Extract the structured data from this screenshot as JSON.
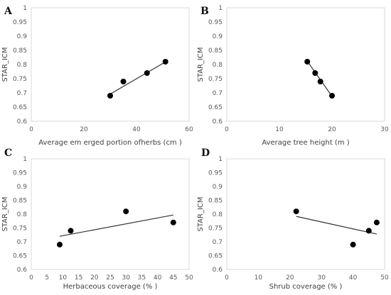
{
  "chart_data": [
    {
      "panel": "A",
      "type": "scatter",
      "xlabel": "Average em erged portion ofherbs (cm )",
      "ylabel": "STAR_ICM",
      "xlim": [
        0,
        60
      ],
      "ylim": [
        0.6,
        1
      ],
      "xticks": [
        "0",
        "20",
        "40",
        "60"
      ],
      "yticks": [
        "0.6",
        "0.65",
        "0.7",
        "0.75",
        "0.8",
        "0.85",
        "0.9",
        "0.95",
        "1"
      ],
      "points": [
        {
          "x": 30,
          "y": 0.69
        },
        {
          "x": 35,
          "y": 0.74
        },
        {
          "x": 44,
          "y": 0.77
        },
        {
          "x": 51,
          "y": 0.81
        }
      ],
      "trendline": [
        {
          "x": 30,
          "y": 0.696
        },
        {
          "x": 51,
          "y": 0.809
        }
      ]
    },
    {
      "panel": "B",
      "type": "scatter",
      "xlabel": "Average tree height (m )",
      "ylabel": "STAR_ICM",
      "xlim": [
        0,
        30
      ],
      "ylim": [
        0.6,
        1
      ],
      "xticks": [
        "0",
        "10",
        "20",
        "30"
      ],
      "yticks": [
        "0.6",
        "0.65",
        "0.7",
        "0.75",
        "0.8",
        "0.85",
        "0.9",
        "0.95",
        "1"
      ],
      "points": [
        {
          "x": 15.3,
          "y": 0.81
        },
        {
          "x": 16.8,
          "y": 0.77
        },
        {
          "x": 17.8,
          "y": 0.74
        },
        {
          "x": 20,
          "y": 0.69
        }
      ],
      "trendline": [
        {
          "x": 15.3,
          "y": 0.812
        },
        {
          "x": 20,
          "y": 0.688
        }
      ]
    },
    {
      "panel": "C",
      "type": "scatter",
      "xlabel": "Herbaceous coverage (% )",
      "ylabel": "STAR_ICM",
      "xlim": [
        0,
        50
      ],
      "ylim": [
        0.6,
        1
      ],
      "xticks": [
        "0",
        "5",
        "10",
        "15",
        "20",
        "25",
        "30",
        "35",
        "40",
        "45",
        "50"
      ],
      "yticks": [
        "0.6",
        "0.65",
        "0.7",
        "0.75",
        "0.8",
        "0.85",
        "0.9",
        "0.95",
        "1"
      ],
      "points": [
        {
          "x": 9,
          "y": 0.69
        },
        {
          "x": 12.5,
          "y": 0.74
        },
        {
          "x": 30,
          "y": 0.81
        },
        {
          "x": 45,
          "y": 0.77
        }
      ],
      "trendline": [
        {
          "x": 9,
          "y": 0.72
        },
        {
          "x": 45,
          "y": 0.797
        }
      ]
    },
    {
      "panel": "D",
      "type": "scatter",
      "xlabel": "Shrub coverage (% )",
      "ylabel": "STAR_ICM",
      "xlim": [
        0,
        50
      ],
      "ylim": [
        0.6,
        1
      ],
      "xticks": [
        "0",
        "10",
        "20",
        "30",
        "40",
        "50"
      ],
      "yticks": [
        "0.6",
        "0.65",
        "0.7",
        "0.75",
        "0.8",
        "0.85",
        "0.9",
        "0.95",
        "1"
      ],
      "points": [
        {
          "x": 22,
          "y": 0.81
        },
        {
          "x": 40,
          "y": 0.69
        },
        {
          "x": 45,
          "y": 0.74
        },
        {
          "x": 47.5,
          "y": 0.77
        }
      ],
      "trendline": [
        {
          "x": 22,
          "y": 0.792
        },
        {
          "x": 47.5,
          "y": 0.728
        }
      ]
    }
  ]
}
